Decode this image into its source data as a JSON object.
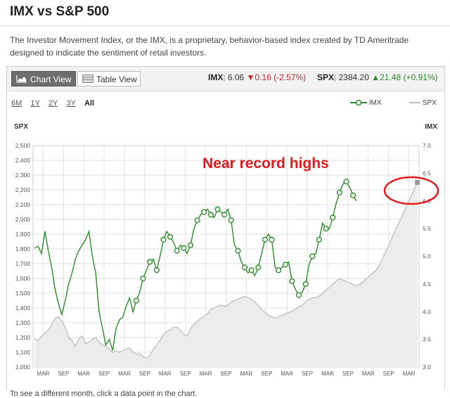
{
  "page": {
    "title": "IMX vs S&P 500",
    "description": "The Investor Movement Index, or the IMX, is a proprietary, behavior-based index created by TD Ameritrade designed to indicate the sentiment of retail investors.",
    "footnote": "To see a different month, click a data point in the chart."
  },
  "toolbar": {
    "chart_view_label": "Chart View",
    "table_view_label": "Table View"
  },
  "quotes": {
    "imx": {
      "label": "IMX",
      "sep": "|",
      "value": "6.06",
      "arrow": "▼",
      "change": "0.16",
      "pct": "(-2.57%)"
    },
    "spx": {
      "label": "SPX",
      "sep": "|",
      "value": "2384.20",
      "arrow": "▲",
      "change": "21.48",
      "pct": "(+0.91%)"
    }
  },
  "ranges": [
    "6M",
    "1Y",
    "2Y",
    "3Y",
    "All"
  ],
  "selected_range": "All",
  "legend": {
    "imx": "IMX",
    "spx": "SPX"
  },
  "colors": {
    "imx": "#2e8b2e",
    "spx": "#bdbdbd",
    "spx_fill": "#ececec",
    "annotation": "#e0191c",
    "grid": "#e2e2e2"
  },
  "chart_data": {
    "type": "line",
    "left_axis_label": "SPX",
    "right_axis_label": "IMX",
    "annotation": "Near record highs",
    "y_left": {
      "min": 1000,
      "max": 2500,
      "ticks": [
        "1,000",
        "1,100",
        "1,200",
        "1,300",
        "1,400",
        "1,500",
        "1,600",
        "1,700",
        "1,800",
        "1,900",
        "2,000",
        "2,100",
        "2,200",
        "2,300",
        "2,400",
        "2,500"
      ]
    },
    "y_right": {
      "min": 3.0,
      "max": 7.0,
      "ticks": [
        "3.0",
        "3.5",
        "4.0",
        "4.5",
        "5.0",
        "5.5",
        "6.0",
        "6.5",
        "7.0"
      ]
    },
    "x_ticks": [
      "MAR",
      "SEP",
      "MAR",
      "SEP",
      "MAR",
      "SEP",
      "MAR",
      "SEP",
      "MAR",
      "SEP",
      "MAR",
      "SEP",
      "MAR",
      "SEP",
      "MAR",
      "SEP",
      "MAR",
      "SEP",
      "MAR"
    ],
    "months": 114,
    "series": [
      {
        "name": "SPX",
        "axis": "left",
        "values": [
          1190,
          1180,
          1205,
          1230,
          1250,
          1290,
          1330,
          1340,
          1310,
          1270,
          1200,
          1180,
          1140,
          1190,
          1210,
          1160,
          1170,
          1190,
          1200,
          1170,
          1150,
          1140,
          1120,
          1100,
          1110,
          1100,
          1110,
          1120,
          1130,
          1100,
          1090,
          1090,
          1070,
          1060,
          1080,
          1120,
          1150,
          1180,
          1220,
          1240,
          1250,
          1270,
          1270,
          1250,
          1220,
          1210,
          1260,
          1290,
          1310,
          1330,
          1340,
          1360,
          1390,
          1400,
          1410,
          1420,
          1410,
          1420,
          1440,
          1450,
          1460,
          1470,
          1480,
          1470,
          1460,
          1440,
          1420,
          1390,
          1370,
          1350,
          1340,
          1330,
          1340,
          1350,
          1360,
          1370,
          1380,
          1390,
          1410,
          1420,
          1440,
          1460,
          1470,
          1470,
          1480,
          1500,
          1520,
          1540,
          1560,
          1580,
          1600,
          1590,
          1580,
          1570,
          1560,
          1550,
          1560,
          1580,
          1600,
          1620,
          1640,
          1660,
          1700,
          1750,
          1800,
          1850,
          1900,
          1950,
          2000,
          2050,
          2100,
          2150,
          2200,
          2250
        ]
      },
      {
        "name": "IMX",
        "axis": "right",
        "values": [
          5.15,
          5.18,
          5.05,
          5.45,
          5.1,
          4.8,
          4.4,
          4.15,
          3.95,
          4.2,
          4.5,
          4.7,
          4.95,
          5.1,
          5.2,
          5.3,
          5.45,
          5.0,
          4.7,
          4.0,
          3.7,
          3.4,
          3.5,
          3.3,
          3.7,
          3.85,
          3.9,
          4.1,
          4.25,
          4.0,
          4.2,
          4.35,
          4.6,
          4.75,
          4.9,
          4.95,
          4.75,
          5.0,
          5.3,
          5.45,
          5.35,
          5.25,
          5.1,
          5.2,
          5.15,
          5.05,
          5.2,
          5.5,
          5.65,
          5.75,
          5.8,
          5.85,
          5.75,
          5.7,
          5.85,
          5.8,
          5.75,
          5.85,
          5.65,
          5.2,
          5.1,
          4.9,
          4.8,
          4.7,
          4.75,
          4.65,
          4.8,
          5.05,
          5.3,
          5.4,
          5.3,
          4.8,
          4.75,
          4.8,
          4.85,
          4.9,
          4.55,
          4.4,
          4.3,
          4.35,
          4.5,
          4.85,
          5.0,
          5.05,
          5.3,
          5.6,
          5.5,
          5.5,
          5.7,
          5.95,
          6.15,
          6.3,
          6.35,
          6.25,
          6.1,
          6.0
        ]
      }
    ],
    "imx_marker_start": 30
  }
}
